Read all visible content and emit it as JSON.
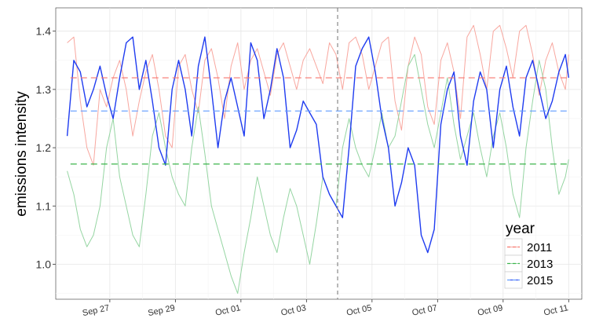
{
  "chart_data": {
    "type": "line",
    "ylabel": "emissions intensity",
    "ylim": [
      0.94,
      1.44
    ],
    "y_ticks": [
      "1.0",
      "1.1",
      "1.2",
      "1.3",
      "1.4"
    ],
    "y_tick_values": [
      1.0,
      1.1,
      1.2,
      1.3,
      1.4
    ],
    "x_ticks": [
      "Sep 27",
      "Sep 29",
      "Oct 01",
      "Oct 03",
      "Oct 05",
      "Oct 07",
      "Oct 09",
      "Oct 11"
    ],
    "x_tick_days": [
      27,
      29,
      31,
      33,
      35,
      37,
      39,
      41
    ],
    "xlim_days": [
      25.35,
      41.4
    ],
    "event_line_day": 33.95,
    "legend": {
      "title": "year",
      "position": "bottom-right"
    },
    "grid": true,
    "series": [
      {
        "name": "2011",
        "color": "#f8a79f",
        "mean": 1.32,
        "mean_color": "#f8766d",
        "x": [
          25.7,
          25.9,
          26.1,
          26.3,
          26.5,
          26.7,
          26.9,
          27.1,
          27.3,
          27.5,
          27.7,
          27.9,
          28.1,
          28.3,
          28.5,
          28.7,
          28.9,
          29.1,
          29.3,
          29.5,
          29.7,
          29.9,
          30.1,
          30.3,
          30.5,
          30.7,
          30.9,
          31.1,
          31.3,
          31.5,
          31.7,
          31.9,
          32.1,
          32.3,
          32.5,
          32.7,
          32.9,
          33.1,
          33.3,
          33.5,
          33.7,
          33.9,
          34.1,
          34.3,
          34.5,
          34.7,
          34.9,
          35.1,
          35.3,
          35.5,
          35.7,
          35.9,
          36.1,
          36.3,
          36.5,
          36.7,
          36.9,
          37.1,
          37.3,
          37.5,
          37.7,
          37.9,
          38.1,
          38.3,
          38.5,
          38.7,
          38.9,
          39.1,
          39.3,
          39.5,
          39.7,
          39.9,
          40.1,
          40.3,
          40.5,
          40.7,
          40.9,
          41.0
        ],
        "y": [
          1.38,
          1.39,
          1.28,
          1.2,
          1.17,
          1.3,
          1.27,
          1.32,
          1.35,
          1.3,
          1.22,
          1.28,
          1.33,
          1.36,
          1.3,
          1.22,
          1.2,
          1.34,
          1.36,
          1.3,
          1.26,
          1.35,
          1.37,
          1.32,
          1.25,
          1.34,
          1.38,
          1.3,
          1.35,
          1.37,
          1.33,
          1.29,
          1.36,
          1.38,
          1.34,
          1.3,
          1.35,
          1.37,
          1.34,
          1.31,
          1.38,
          1.36,
          1.3,
          1.38,
          1.39,
          1.36,
          1.3,
          1.34,
          1.38,
          1.39,
          1.28,
          1.23,
          1.34,
          1.39,
          1.36,
          1.27,
          1.24,
          1.35,
          1.38,
          1.33,
          1.25,
          1.39,
          1.41,
          1.36,
          1.3,
          1.4,
          1.41,
          1.37,
          1.32,
          1.4,
          1.41,
          1.36,
          1.29,
          1.35,
          1.38,
          1.33,
          1.3,
          1.36
        ]
      },
      {
        "name": "2013",
        "color": "#95d5a2",
        "mean": 1.172,
        "mean_color": "#3cb44b",
        "x": [
          25.7,
          25.9,
          26.1,
          26.3,
          26.5,
          26.7,
          26.9,
          27.1,
          27.3,
          27.5,
          27.7,
          27.9,
          28.1,
          28.3,
          28.5,
          28.7,
          28.9,
          29.1,
          29.3,
          29.5,
          29.7,
          29.9,
          30.1,
          30.3,
          30.5,
          30.7,
          30.9,
          31.1,
          31.3,
          31.5,
          31.7,
          31.9,
          32.1,
          32.3,
          32.5,
          32.7,
          32.9,
          33.1,
          33.3,
          33.5,
          33.7,
          33.9,
          34.1,
          34.3,
          34.5,
          34.7,
          34.9,
          35.1,
          35.3,
          35.5,
          35.7,
          35.9,
          36.1,
          36.3,
          36.5,
          36.7,
          36.9,
          37.1,
          37.3,
          37.5,
          37.7,
          37.9,
          38.1,
          38.3,
          38.5,
          38.7,
          38.9,
          39.1,
          39.3,
          39.5,
          39.7,
          39.9,
          40.1,
          40.3,
          40.5,
          40.7,
          40.9,
          41.0
        ],
        "y": [
          1.16,
          1.12,
          1.06,
          1.03,
          1.05,
          1.1,
          1.2,
          1.25,
          1.15,
          1.1,
          1.05,
          1.03,
          1.12,
          1.22,
          1.26,
          1.2,
          1.15,
          1.12,
          1.1,
          1.2,
          1.27,
          1.19,
          1.1,
          1.06,
          1.02,
          0.98,
          0.95,
          1.02,
          1.08,
          1.15,
          1.1,
          1.05,
          1.02,
          1.08,
          1.13,
          1.1,
          1.05,
          1.0,
          1.07,
          1.15,
          1.12,
          1.1,
          1.2,
          1.25,
          1.2,
          1.17,
          1.15,
          1.2,
          1.26,
          1.2,
          1.22,
          1.28,
          1.34,
          1.36,
          1.3,
          1.24,
          1.2,
          1.26,
          1.32,
          1.24,
          1.18,
          1.22,
          1.26,
          1.2,
          1.15,
          1.22,
          1.26,
          1.2,
          1.12,
          1.08,
          1.2,
          1.28,
          1.35,
          1.3,
          1.2,
          1.12,
          1.15,
          1.18
        ]
      },
      {
        "name": "2015",
        "color": "#1f3cf0",
        "mean": 1.263,
        "mean_color": "#619cff",
        "x": [
          25.7,
          25.9,
          26.1,
          26.3,
          26.5,
          26.7,
          26.9,
          27.1,
          27.3,
          27.5,
          27.7,
          27.9,
          28.1,
          28.3,
          28.5,
          28.7,
          28.9,
          29.1,
          29.3,
          29.5,
          29.7,
          29.9,
          30.1,
          30.3,
          30.5,
          30.7,
          30.9,
          31.1,
          31.3,
          31.5,
          31.7,
          31.9,
          32.1,
          32.3,
          32.5,
          32.7,
          32.9,
          33.1,
          33.3,
          33.5,
          33.7,
          33.9,
          34.1,
          34.3,
          34.5,
          34.7,
          34.9,
          35.1,
          35.3,
          35.5,
          35.7,
          35.9,
          36.1,
          36.3,
          36.5,
          36.7,
          36.9,
          37.1,
          37.3,
          37.5,
          37.7,
          37.9,
          38.1,
          38.3,
          38.5,
          38.7,
          38.9,
          39.1,
          39.3,
          39.5,
          39.7,
          39.9,
          40.1,
          40.3,
          40.5,
          40.7,
          40.9,
          41.0
        ],
        "y": [
          1.22,
          1.35,
          1.33,
          1.27,
          1.3,
          1.34,
          1.29,
          1.25,
          1.32,
          1.38,
          1.39,
          1.3,
          1.35,
          1.28,
          1.2,
          1.17,
          1.3,
          1.35,
          1.3,
          1.22,
          1.34,
          1.39,
          1.3,
          1.2,
          1.28,
          1.32,
          1.27,
          1.22,
          1.38,
          1.35,
          1.25,
          1.3,
          1.37,
          1.32,
          1.2,
          1.23,
          1.28,
          1.26,
          1.24,
          1.15,
          1.12,
          1.1,
          1.08,
          1.2,
          1.34,
          1.37,
          1.39,
          1.33,
          1.25,
          1.2,
          1.1,
          1.14,
          1.2,
          1.17,
          1.05,
          1.02,
          1.06,
          1.24,
          1.3,
          1.33,
          1.22,
          1.17,
          1.28,
          1.33,
          1.3,
          1.2,
          1.3,
          1.34,
          1.27,
          1.22,
          1.32,
          1.35,
          1.3,
          1.25,
          1.28,
          1.33,
          1.36,
          1.32
        ]
      }
    ]
  }
}
